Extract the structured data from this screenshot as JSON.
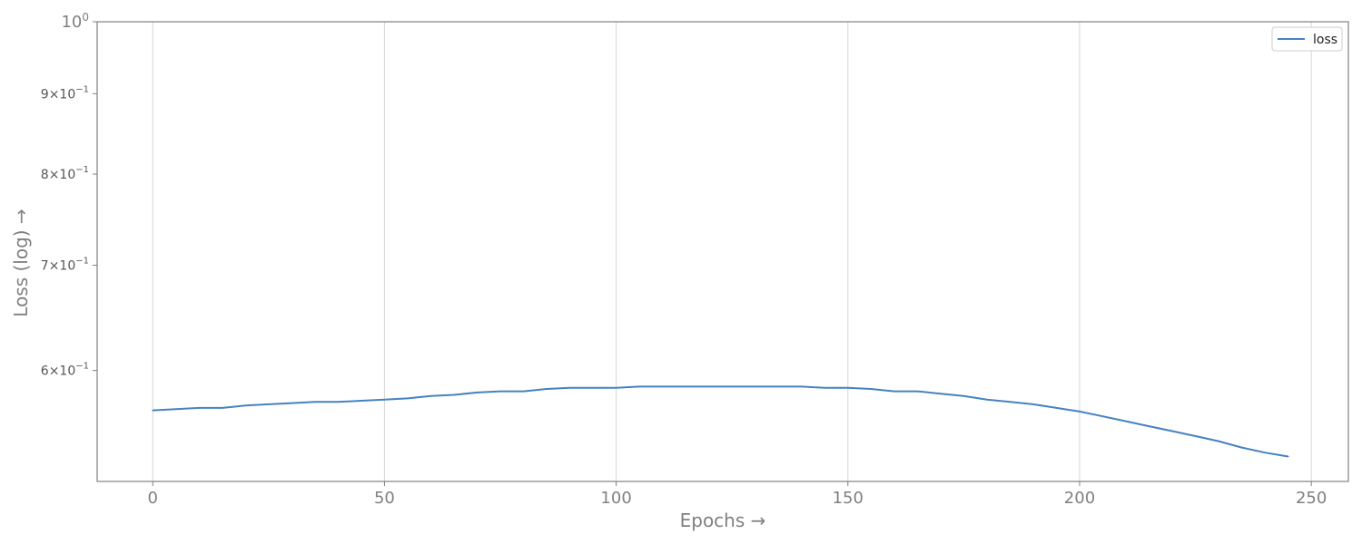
{
  "chart_data": {
    "type": "line",
    "title": "",
    "xlabel": "Epochs →",
    "ylabel": "Loss (log) →",
    "xlim": [
      -12,
      258
    ],
    "ylim": [
      0.51,
      1.0
    ],
    "yscale": "log",
    "grid": "vertical",
    "legend_position": "top-right",
    "x_ticks": [
      0,
      50,
      100,
      150,
      200,
      250
    ],
    "y_ticks": [
      {
        "value": 1.0,
        "mantissa": "",
        "exponent": "0",
        "base": "10"
      },
      {
        "value": 0.9,
        "mantissa": "9",
        "exponent": "−1",
        "base": "10"
      },
      {
        "value": 0.8,
        "mantissa": "8",
        "exponent": "−1",
        "base": "10"
      },
      {
        "value": 0.7,
        "mantissa": "7",
        "exponent": "−1",
        "base": "10"
      },
      {
        "value": 0.6,
        "mantissa": "6",
        "exponent": "−1",
        "base": "10"
      }
    ],
    "series": [
      {
        "name": "loss",
        "color": "#4682c0",
        "x": [
          0,
          5,
          10,
          15,
          20,
          25,
          30,
          35,
          40,
          45,
          50,
          55,
          60,
          65,
          70,
          75,
          80,
          85,
          90,
          95,
          100,
          105,
          110,
          115,
          120,
          125,
          130,
          135,
          140,
          145,
          150,
          155,
          160,
          165,
          170,
          175,
          180,
          185,
          190,
          195,
          200,
          205,
          210,
          215,
          220,
          225,
          230,
          235,
          240,
          245
        ],
        "y": [
          0.566,
          0.567,
          0.568,
          0.568,
          0.57,
          0.571,
          0.572,
          0.573,
          0.573,
          0.574,
          0.575,
          0.576,
          0.578,
          0.579,
          0.581,
          0.582,
          0.582,
          0.584,
          0.585,
          0.585,
          0.585,
          0.586,
          0.586,
          0.586,
          0.586,
          0.586,
          0.586,
          0.586,
          0.586,
          0.585,
          0.585,
          0.584,
          0.582,
          0.582,
          0.58,
          0.578,
          0.575,
          0.573,
          0.571,
          0.568,
          0.565,
          0.561,
          0.557,
          0.553,
          0.549,
          0.545,
          0.541,
          0.536,
          0.532,
          0.529
        ]
      }
    ]
  }
}
